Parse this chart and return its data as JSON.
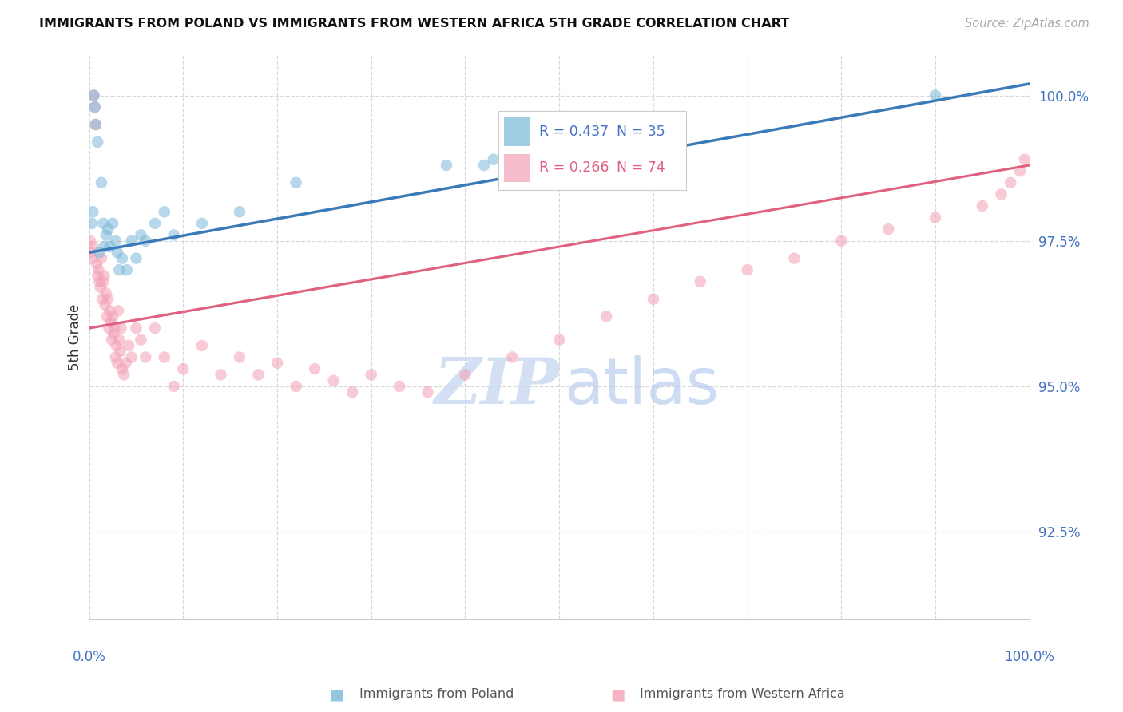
{
  "title": "IMMIGRANTS FROM POLAND VS IMMIGRANTS FROM WESTERN AFRICA 5TH GRADE CORRELATION CHART",
  "source": "Source: ZipAtlas.com",
  "ylabel_label": "5th Grade",
  "xmin": 0.0,
  "xmax": 100.0,
  "ymin": 91.0,
  "ymax": 100.7,
  "yticks": [
    92.5,
    95.0,
    97.5,
    100.0
  ],
  "ytick_labels": [
    "92.5%",
    "95.0%",
    "97.5%",
    "100.0%"
  ],
  "blue_R": "0.437",
  "blue_N": "35",
  "pink_R": "0.266",
  "pink_N": "74",
  "blue_scatter_color": "#7ab8d9",
  "pink_scatter_color": "#f4a0b5",
  "blue_line_color": "#3a7ab8",
  "pink_line_color": "#e06080",
  "grid_color": "#d8d8d8",
  "watermark_color": "#c8d8ef",
  "blue_label": "Immigrants from Poland",
  "pink_label": "Immigrants from Western Africa",
  "blue_line_x0": 0.0,
  "blue_line_y0": 97.3,
  "blue_line_x1": 100.0,
  "blue_line_y1": 100.2,
  "pink_line_x0": 0.0,
  "pink_line_y0": 96.0,
  "pink_line_x1": 100.0,
  "pink_line_y1": 98.8,
  "pink_dash_end": 35.0,
  "blue_scatter_x": [
    0.3,
    0.4,
    0.5,
    0.6,
    0.7,
    0.9,
    1.1,
    1.3,
    1.5,
    1.6,
    1.8,
    2.0,
    2.2,
    2.5,
    2.8,
    3.0,
    3.2,
    3.5,
    4.0,
    4.5,
    5.0,
    5.5,
    6.0,
    7.0,
    8.0,
    9.0,
    12.0,
    16.0,
    22.0,
    38.0,
    42.0,
    43.0,
    45.0,
    48.0,
    90.0
  ],
  "blue_scatter_y": [
    97.8,
    98.0,
    100.0,
    99.8,
    99.5,
    99.2,
    97.3,
    98.5,
    97.8,
    97.4,
    97.6,
    97.7,
    97.4,
    97.8,
    97.5,
    97.3,
    97.0,
    97.2,
    97.0,
    97.5,
    97.2,
    97.6,
    97.5,
    97.8,
    98.0,
    97.6,
    97.8,
    98.0,
    98.5,
    98.8,
    98.8,
    98.9,
    99.0,
    99.0,
    100.0
  ],
  "pink_scatter_x": [
    0.1,
    0.2,
    0.3,
    0.4,
    0.5,
    0.6,
    0.7,
    0.8,
    0.9,
    1.0,
    1.1,
    1.2,
    1.3,
    1.4,
    1.5,
    1.6,
    1.7,
    1.8,
    1.9,
    2.0,
    2.1,
    2.2,
    2.3,
    2.4,
    2.5,
    2.6,
    2.7,
    2.8,
    2.9,
    3.0,
    3.1,
    3.2,
    3.3,
    3.4,
    3.5,
    3.7,
    3.9,
    4.2,
    4.5,
    5.0,
    5.5,
    6.0,
    7.0,
    8.0,
    9.0,
    10.0,
    12.0,
    14.0,
    16.0,
    18.0,
    20.0,
    22.0,
    24.0,
    26.0,
    28.0,
    30.0,
    33.0,
    36.0,
    40.0,
    45.0,
    50.0,
    55.0,
    60.0,
    65.0,
    70.0,
    75.0,
    80.0,
    85.0,
    90.0,
    95.0,
    97.0,
    98.0,
    99.0,
    99.5
  ],
  "pink_scatter_y": [
    97.5,
    97.3,
    97.2,
    97.4,
    100.0,
    99.8,
    99.5,
    97.1,
    96.9,
    97.0,
    96.8,
    96.7,
    97.2,
    96.5,
    96.8,
    96.9,
    96.4,
    96.6,
    96.2,
    96.5,
    96.0,
    96.3,
    96.1,
    95.8,
    96.2,
    95.9,
    96.0,
    95.5,
    95.7,
    95.4,
    96.3,
    95.8,
    95.6,
    96.0,
    95.3,
    95.2,
    95.4,
    95.7,
    95.5,
    96.0,
    95.8,
    95.5,
    96.0,
    95.5,
    95.0,
    95.3,
    95.7,
    95.2,
    95.5,
    95.2,
    95.4,
    95.0,
    95.3,
    95.1,
    94.9,
    95.2,
    95.0,
    94.9,
    95.2,
    95.5,
    95.8,
    96.2,
    96.5,
    96.8,
    97.0,
    97.2,
    97.5,
    97.7,
    97.9,
    98.1,
    98.3,
    98.5,
    98.7,
    98.9
  ]
}
